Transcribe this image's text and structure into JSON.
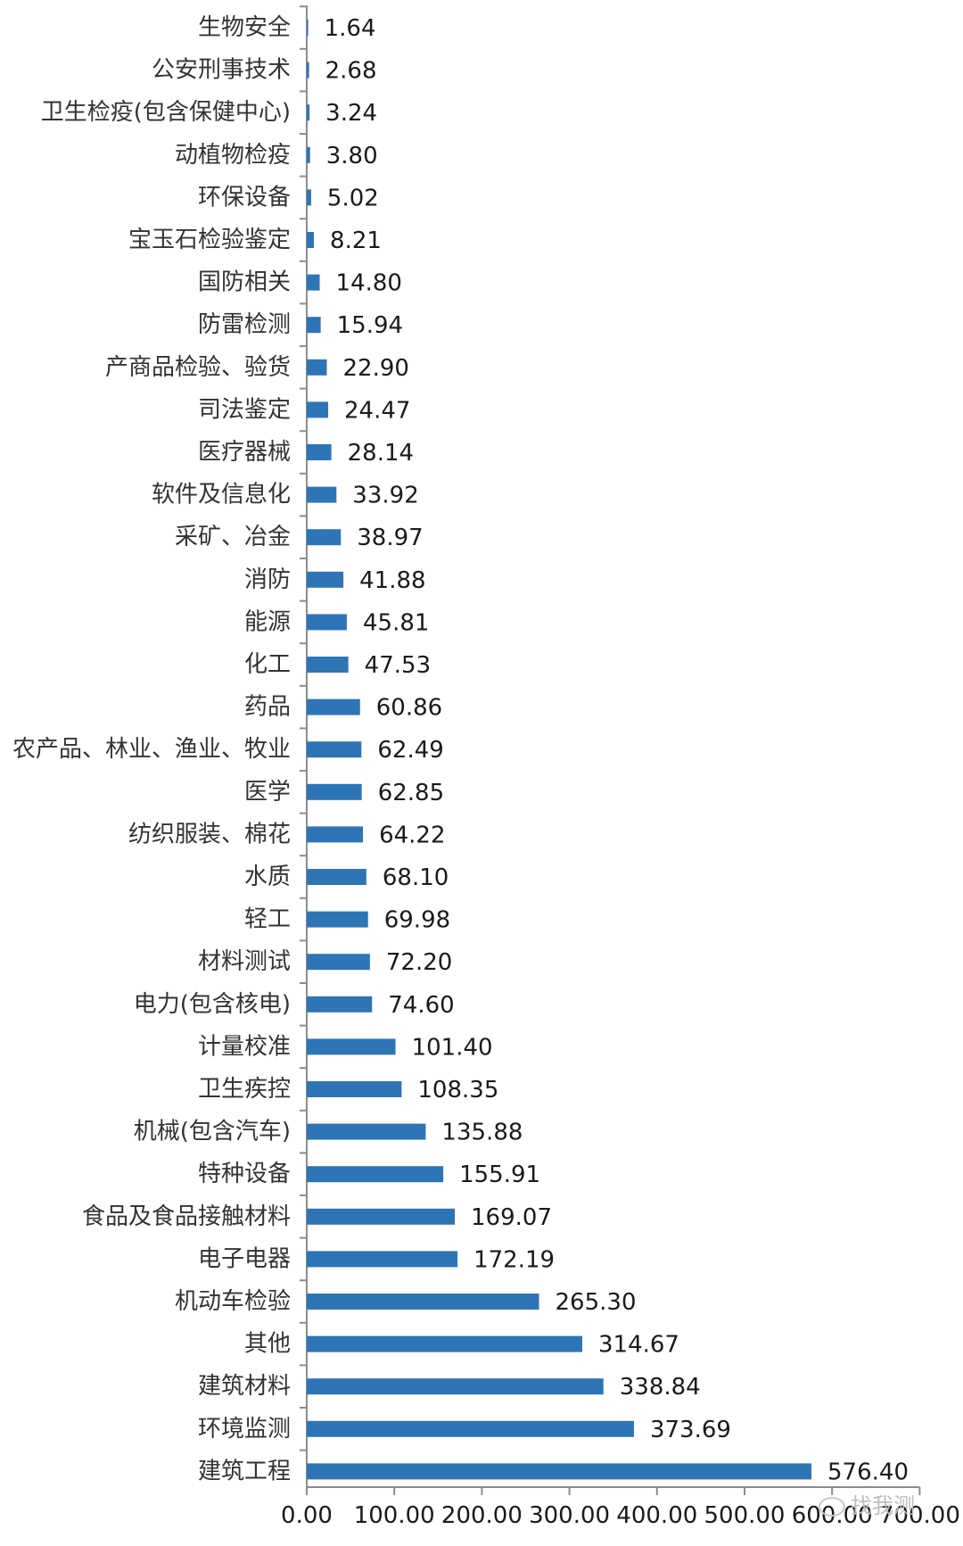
{
  "chart_data": {
    "type": "bar",
    "orientation": "horizontal",
    "categories": [
      "生物安全",
      "公安刑事技术",
      "卫生检疫(包含保健中心)",
      "动植物检疫",
      "环保设备",
      "宝玉石检验鉴定",
      "国防相关",
      "防雷检测",
      "产商品检验、验货",
      "司法鉴定",
      "医疗器械",
      "软件及信息化",
      "采矿、冶金",
      "消防",
      "能源",
      "化工",
      "药品",
      "农产品、林业、渔业、牧业",
      "医学",
      "纺织服装、棉花",
      "水质",
      "轻工",
      "材料测试",
      "电力(包含核电)",
      "计量校准",
      "卫生疾控",
      "机械(包含汽车)",
      "特种设备",
      "食品及食品接触材料",
      "电子电器",
      "机动车检验",
      "其他",
      "建筑材料",
      "环境监测",
      "建筑工程"
    ],
    "values": [
      1.64,
      2.68,
      3.24,
      3.8,
      5.02,
      8.21,
      14.8,
      15.94,
      22.9,
      24.47,
      28.14,
      33.92,
      38.97,
      41.88,
      45.81,
      47.53,
      60.86,
      62.49,
      62.85,
      64.22,
      68.1,
      69.98,
      72.2,
      74.6,
      101.4,
      108.35,
      135.88,
      155.91,
      169.07,
      172.19,
      265.3,
      314.67,
      338.84,
      373.69,
      576.4
    ],
    "value_labels": [
      "1.64",
      "2.68",
      "3.24",
      "3.80",
      "5.02",
      "8.21",
      "14.80",
      "15.94",
      "22.90",
      "24.47",
      "28.14",
      "33.92",
      "38.97",
      "41.88",
      "45.81",
      "47.53",
      "60.86",
      "62.49",
      "62.85",
      "64.22",
      "68.10",
      "69.98",
      "72.20",
      "74.60",
      "101.40",
      "108.35",
      "135.88",
      "155.91",
      "169.07",
      "172.19",
      "265.30",
      "314.67",
      "338.84",
      "373.69",
      "576.40"
    ],
    "xticks": [
      "0.00",
      "100.00",
      "200.00",
      "300.00",
      "400.00",
      "500.00",
      "600.00",
      "700.00"
    ],
    "xlim": [
      0,
      700
    ],
    "title": "",
    "xlabel": "",
    "ylabel": "",
    "grid": false,
    "bar_color": "#2e75b6"
  },
  "watermark": {
    "text": "找我测",
    "icon": "wechat-icon"
  }
}
